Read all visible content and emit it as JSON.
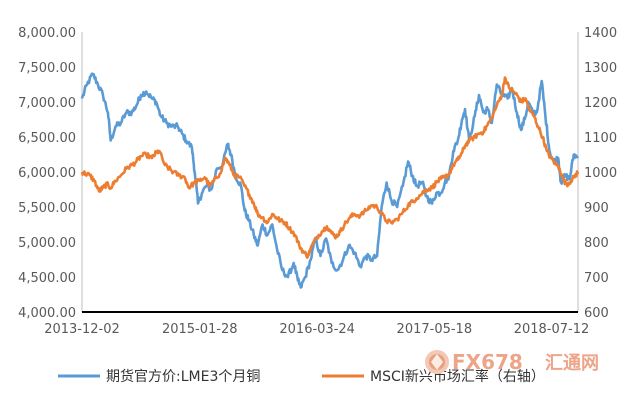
{
  "chart_data": {
    "type": "line",
    "title": "",
    "xlabel": "",
    "ylabel": "",
    "x_ticks": [
      "2013-12-02",
      "2015-01-28",
      "2016-03-24",
      "2017-05-18",
      "2018-07-12"
    ],
    "x_range": [
      "2013-12-02",
      "2018-10-15"
    ],
    "y_left": {
      "ylim": [
        4000,
        8000
      ],
      "ticks": [
        4000,
        4500,
        5000,
        5500,
        6000,
        6500,
        7000,
        7500,
        8000
      ],
      "tick_labels": [
        "4,000.00",
        "4,500.00",
        "5,000.00",
        "5,500.00",
        "6,000.00",
        "6,500.00",
        "7,000.00",
        "7,500.00",
        "8,000.00"
      ]
    },
    "y_right": {
      "ylim": [
        600,
        1400
      ],
      "ticks": [
        600,
        700,
        800,
        900,
        1000,
        1100,
        1200,
        1300,
        1400
      ],
      "tick_labels": [
        "600",
        "700",
        "800",
        "900",
        "1000",
        "1100",
        "1200",
        "1300",
        "1400"
      ]
    },
    "grid": false,
    "legend_position": "bottom",
    "series": [
      {
        "name": "期货官方价:LME3个月铜",
        "axis": "left",
        "color": "#5b9bd5",
        "points": [
          [
            "2013-12-02",
            7050
          ],
          [
            "2013-12-20",
            7250
          ],
          [
            "2014-01-10",
            7400
          ],
          [
            "2014-01-28",
            7250
          ],
          [
            "2014-02-15",
            7100
          ],
          [
            "2014-03-05",
            6850
          ],
          [
            "2014-03-15",
            6450
          ],
          [
            "2014-04-01",
            6650
          ],
          [
            "2014-04-20",
            6700
          ],
          [
            "2014-05-10",
            6850
          ],
          [
            "2014-05-30",
            6850
          ],
          [
            "2014-06-15",
            6950
          ],
          [
            "2014-07-01",
            7100
          ],
          [
            "2014-07-20",
            7150
          ],
          [
            "2014-08-10",
            7050
          ],
          [
            "2014-08-25",
            7000
          ],
          [
            "2014-09-10",
            6800
          ],
          [
            "2014-10-01",
            6700
          ],
          [
            "2014-10-20",
            6650
          ],
          [
            "2014-11-10",
            6650
          ],
          [
            "2014-11-25",
            6550
          ],
          [
            "2014-12-10",
            6450
          ],
          [
            "2014-12-31",
            6350
          ],
          [
            "2015-01-10",
            6000
          ],
          [
            "2015-01-22",
            5550
          ],
          [
            "2015-02-05",
            5700
          ],
          [
            "2015-02-20",
            5800
          ],
          [
            "2015-03-10",
            5750
          ],
          [
            "2015-03-31",
            6050
          ],
          [
            "2015-04-20",
            6100
          ],
          [
            "2015-05-08",
            6400
          ],
          [
            "2015-05-20",
            6250
          ],
          [
            "2015-06-05",
            5950
          ],
          [
            "2015-06-25",
            5800
          ],
          [
            "2015-07-08",
            5450
          ],
          [
            "2015-07-24",
            5300
          ],
          [
            "2015-08-10",
            5100
          ],
          [
            "2015-08-24",
            4950
          ],
          [
            "2015-09-10",
            5250
          ],
          [
            "2015-09-28",
            5100
          ],
          [
            "2015-10-15",
            5250
          ],
          [
            "2015-11-01",
            4900
          ],
          [
            "2015-11-20",
            4600
          ],
          [
            "2015-12-10",
            4500
          ],
          [
            "2015-12-31",
            4700
          ],
          [
            "2016-01-15",
            4450
          ],
          [
            "2016-01-25",
            4350
          ],
          [
            "2016-02-10",
            4500
          ],
          [
            "2016-03-01",
            4750
          ],
          [
            "2016-03-18",
            5050
          ],
          [
            "2016-04-05",
            4800
          ],
          [
            "2016-04-25",
            5050
          ],
          [
            "2016-05-15",
            4700
          ],
          [
            "2016-06-05",
            4600
          ],
          [
            "2016-06-25",
            4750
          ],
          [
            "2016-07-15",
            4950
          ],
          [
            "2016-08-05",
            4850
          ],
          [
            "2016-08-25",
            4650
          ],
          [
            "2016-09-15",
            4800
          ],
          [
            "2016-10-05",
            4750
          ],
          [
            "2016-10-25",
            4800
          ],
          [
            "2016-11-10",
            5500
          ],
          [
            "2016-11-28",
            5850
          ],
          [
            "2016-12-15",
            5600
          ],
          [
            "2017-01-05",
            5500
          ],
          [
            "2017-01-25",
            5800
          ],
          [
            "2017-02-13",
            6150
          ],
          [
            "2017-02-28",
            5950
          ],
          [
            "2017-03-15",
            5800
          ],
          [
            "2017-04-05",
            5850
          ],
          [
            "2017-04-20",
            5650
          ],
          [
            "2017-05-10",
            5550
          ],
          [
            "2017-05-25",
            5700
          ],
          [
            "2017-06-10",
            5700
          ],
          [
            "2017-06-25",
            5850
          ],
          [
            "2017-07-10",
            5950
          ],
          [
            "2017-07-25",
            6300
          ],
          [
            "2017-08-10",
            6450
          ],
          [
            "2017-08-25",
            6750
          ],
          [
            "2017-09-05",
            6900
          ],
          [
            "2017-09-20",
            6450
          ],
          [
            "2017-10-10",
            6800
          ],
          [
            "2017-10-25",
            7100
          ],
          [
            "2017-11-10",
            6850
          ],
          [
            "2017-11-25",
            6900
          ],
          [
            "2017-12-10",
            6700
          ],
          [
            "2017-12-28",
            7250
          ],
          [
            "2018-01-15",
            7100
          ],
          [
            "2018-02-05",
            7050
          ],
          [
            "2018-02-20",
            7200
          ],
          [
            "2018-03-10",
            6850
          ],
          [
            "2018-03-25",
            6600
          ],
          [
            "2018-04-10",
            6800
          ],
          [
            "2018-04-20",
            7000
          ],
          [
            "2018-05-05",
            6850
          ],
          [
            "2018-05-20",
            6850
          ],
          [
            "2018-06-07",
            7300
          ],
          [
            "2018-06-20",
            6800
          ],
          [
            "2018-07-05",
            6300
          ],
          [
            "2018-07-20",
            6150
          ],
          [
            "2018-08-05",
            6200
          ],
          [
            "2018-08-15",
            5850
          ],
          [
            "2018-08-30",
            5950
          ],
          [
            "2018-09-15",
            5900
          ],
          [
            "2018-09-30",
            6250
          ],
          [
            "2018-10-15",
            6200
          ]
        ]
      },
      {
        "name": "MSCI新兴市场汇率（右轴）",
        "axis": "right",
        "color": "#ed7d31",
        "points": [
          [
            "2013-12-02",
            1000
          ],
          [
            "2013-12-15",
            995
          ],
          [
            "2013-12-31",
            990
          ],
          [
            "2014-01-15",
            975
          ],
          [
            "2014-02-01",
            945
          ],
          [
            "2014-02-15",
            955
          ],
          [
            "2014-03-01",
            965
          ],
          [
            "2014-03-15",
            955
          ],
          [
            "2014-04-01",
            975
          ],
          [
            "2014-04-20",
            990
          ],
          [
            "2014-05-10",
            1010
          ],
          [
            "2014-05-30",
            1020
          ],
          [
            "2014-06-15",
            1030
          ],
          [
            "2014-07-01",
            1045
          ],
          [
            "2014-07-20",
            1050
          ],
          [
            "2014-08-10",
            1040
          ],
          [
            "2014-08-25",
            1055
          ],
          [
            "2014-09-05",
            1060
          ],
          [
            "2014-09-25",
            1020
          ],
          [
            "2014-10-10",
            1010
          ],
          [
            "2014-10-25",
            1000
          ],
          [
            "2014-11-15",
            990
          ],
          [
            "2014-12-05",
            985
          ],
          [
            "2014-12-20",
            955
          ],
          [
            "2015-01-10",
            970
          ],
          [
            "2015-01-28",
            975
          ],
          [
            "2015-02-15",
            985
          ],
          [
            "2015-03-05",
            960
          ],
          [
            "2015-03-20",
            975
          ],
          [
            "2015-04-10",
            995
          ],
          [
            "2015-04-30",
            1040
          ],
          [
            "2015-05-15",
            1020
          ],
          [
            "2015-06-01",
            990
          ],
          [
            "2015-06-20",
            985
          ],
          [
            "2015-07-08",
            960
          ],
          [
            "2015-07-25",
            935
          ],
          [
            "2015-08-10",
            910
          ],
          [
            "2015-08-24",
            880
          ],
          [
            "2015-09-10",
            870
          ],
          [
            "2015-09-28",
            855
          ],
          [
            "2015-10-15",
            880
          ],
          [
            "2015-10-30",
            870
          ],
          [
            "2015-11-15",
            860
          ],
          [
            "2015-12-01",
            855
          ],
          [
            "2015-12-15",
            840
          ],
          [
            "2016-01-05",
            820
          ],
          [
            "2016-01-20",
            790
          ],
          [
            "2016-02-05",
            770
          ],
          [
            "2016-02-20",
            760
          ],
          [
            "2016-03-05",
            790
          ],
          [
            "2016-03-24",
            815
          ],
          [
            "2016-04-10",
            830
          ],
          [
            "2016-04-28",
            845
          ],
          [
            "2016-05-15",
            825
          ],
          [
            "2016-05-31",
            815
          ],
          [
            "2016-06-15",
            830
          ],
          [
            "2016-06-30",
            850
          ],
          [
            "2016-07-20",
            870
          ],
          [
            "2016-08-05",
            880
          ],
          [
            "2016-08-25",
            875
          ],
          [
            "2016-09-15",
            890
          ],
          [
            "2016-10-05",
            905
          ],
          [
            "2016-10-25",
            900
          ],
          [
            "2016-11-10",
            880
          ],
          [
            "2016-11-28",
            860
          ],
          [
            "2016-12-15",
            855
          ],
          [
            "2017-01-05",
            865
          ],
          [
            "2017-01-25",
            885
          ],
          [
            "2017-02-13",
            905
          ],
          [
            "2017-02-28",
            915
          ],
          [
            "2017-03-15",
            925
          ],
          [
            "2017-04-05",
            940
          ],
          [
            "2017-04-20",
            950
          ],
          [
            "2017-05-10",
            955
          ],
          [
            "2017-05-25",
            970
          ],
          [
            "2017-06-10",
            980
          ],
          [
            "2017-06-25",
            985
          ],
          [
            "2017-07-10",
            995
          ],
          [
            "2017-07-25",
            1020
          ],
          [
            "2017-08-10",
            1035
          ],
          [
            "2017-08-25",
            1055
          ],
          [
            "2017-09-05",
            1075
          ],
          [
            "2017-09-20",
            1090
          ],
          [
            "2017-10-10",
            1100
          ],
          [
            "2017-10-25",
            1110
          ],
          [
            "2017-11-10",
            1115
          ],
          [
            "2017-11-25",
            1135
          ],
          [
            "2017-12-10",
            1155
          ],
          [
            "2017-12-28",
            1190
          ],
          [
            "2018-01-15",
            1220
          ],
          [
            "2018-01-26",
            1270
          ],
          [
            "2018-02-10",
            1240
          ],
          [
            "2018-02-25",
            1230
          ],
          [
            "2018-03-10",
            1220
          ],
          [
            "2018-03-25",
            1200
          ],
          [
            "2018-04-10",
            1210
          ],
          [
            "2018-04-25",
            1175
          ],
          [
            "2018-05-10",
            1160
          ],
          [
            "2018-05-25",
            1130
          ],
          [
            "2018-06-10",
            1100
          ],
          [
            "2018-06-25",
            1060
          ],
          [
            "2018-07-10",
            1040
          ],
          [
            "2018-07-25",
            1025
          ],
          [
            "2018-08-10",
            1010
          ],
          [
            "2018-08-25",
            975
          ],
          [
            "2018-09-05",
            965
          ],
          [
            "2018-09-20",
            975
          ],
          [
            "2018-10-05",
            990
          ],
          [
            "2018-10-15",
            1000
          ]
        ]
      }
    ]
  },
  "watermark": {
    "brand_latin": "FX678",
    "brand_cn": "汇通网",
    "color": "#e05a2a"
  }
}
